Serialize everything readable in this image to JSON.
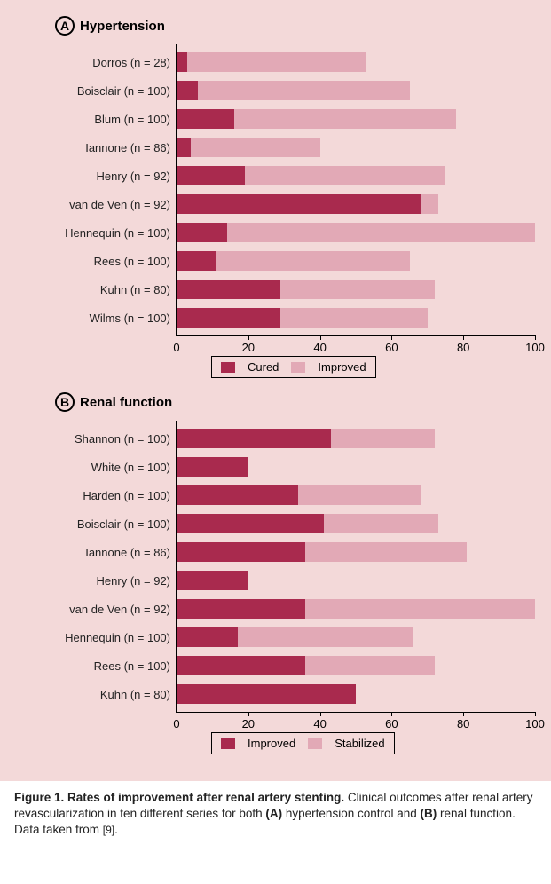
{
  "colors": {
    "panel_bg": "#f3d9d9",
    "axis": "#000000",
    "series1": "#a92a4e",
    "series2": "#e2a9b6",
    "text": "#222222"
  },
  "panelA": {
    "badge": "A",
    "title": "Hypertension",
    "xlim": [
      0,
      100
    ],
    "xtick_step": 20,
    "legend": {
      "s1": "Cured",
      "s2": "Improved"
    },
    "rows": [
      {
        "label": "Dorros (n = 28)",
        "v1": 3,
        "v2": 50
      },
      {
        "label": "Boisclair (n = 100)",
        "v1": 6,
        "v2": 59
      },
      {
        "label": "Blum (n = 100)",
        "v1": 16,
        "v2": 62
      },
      {
        "label": "Iannone (n = 86)",
        "v1": 4,
        "v2": 36
      },
      {
        "label": "Henry (n = 92)",
        "v1": 19,
        "v2": 56
      },
      {
        "label": "van de Ven (n = 92)",
        "v1": 68,
        "v2": 5
      },
      {
        "label": "Hennequin (n = 100)",
        "v1": 14,
        "v2": 86
      },
      {
        "label": "Rees (n = 100)",
        "v1": 11,
        "v2": 54
      },
      {
        "label": "Kuhn (n = 80)",
        "v1": 29,
        "v2": 43
      },
      {
        "label": "Wilms (n = 100)",
        "v1": 29,
        "v2": 41
      }
    ]
  },
  "panelB": {
    "badge": "B",
    "title": "Renal function",
    "xlim": [
      0,
      100
    ],
    "xtick_step": 20,
    "legend": {
      "s1": "Improved",
      "s2": "Stabilized"
    },
    "rows": [
      {
        "label": "Shannon (n = 100)",
        "v1": 43,
        "v2": 29
      },
      {
        "label": "White (n = 100)",
        "v1": 20,
        "v2": 0
      },
      {
        "label": "Harden (n = 100)",
        "v1": 34,
        "v2": 34
      },
      {
        "label": "Boisclair (n = 100)",
        "v1": 41,
        "v2": 32
      },
      {
        "label": "Iannone (n = 86)",
        "v1": 36,
        "v2": 45
      },
      {
        "label": "Henry (n = 92)",
        "v1": 20,
        "v2": 0
      },
      {
        "label": "van de Ven (n = 92)",
        "v1": 36,
        "v2": 64
      },
      {
        "label": "Hennequin (n = 100)",
        "v1": 17,
        "v2": 49
      },
      {
        "label": "Rees (n = 100)",
        "v1": 36,
        "v2": 36
      },
      {
        "label": "Kuhn (n = 80)",
        "v1": 50,
        "v2": 0
      }
    ]
  },
  "caption": {
    "title": "Figure 1. Rates of improvement after renal artery stenting.",
    "body1": " Clinical outcomes after renal artery revascularization in ten different series for both ",
    "boldA": "(A)",
    "body2": " hypertension control and ",
    "boldB": "(B)",
    "body3": " renal function.",
    "line2a": "Data taken from ",
    "ref": "[9]",
    "line2b": "."
  }
}
